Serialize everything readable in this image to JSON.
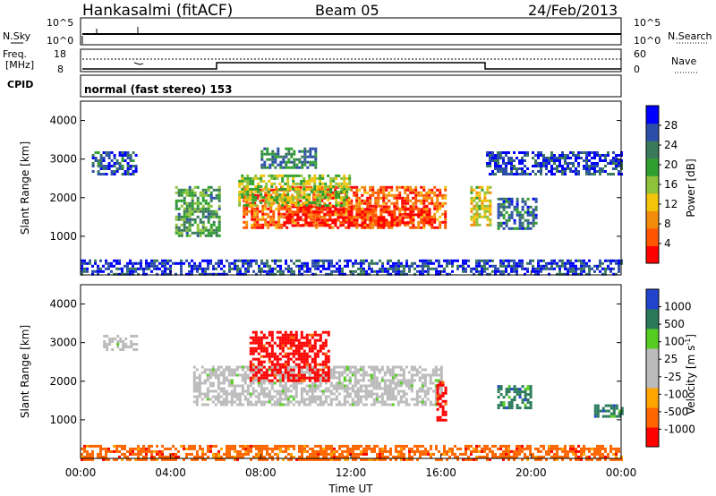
{
  "header": {
    "station": "Hankasalmi (fitACF)",
    "beam": "Beam 05",
    "date": "24/Feb/2013"
  },
  "noise_panel": {
    "left_label": "N.Sky",
    "right_label": "N.Search",
    "ticks_left": [
      "10^5",
      "10^0"
    ],
    "ticks_right": [
      "10^5",
      "10^0"
    ]
  },
  "freq_panel": {
    "left_label_1": "Freq.",
    "left_label_2": "[MHz]",
    "ticks_left": [
      "18",
      "8"
    ],
    "right_label": "Nave",
    "ticks_right": [
      "60",
      "0"
    ]
  },
  "cpid": {
    "label": "CPID",
    "text": "normal (fast stereo) 153"
  },
  "chart_data": [
    {
      "type": "heatmap",
      "name": "power",
      "ylabel": "Slant Range [km]",
      "ylim": [
        0,
        4500
      ],
      "yticks": [
        "4000",
        "3000",
        "2000",
        "1000"
      ],
      "xlim_hours": [
        0,
        24
      ],
      "xticks": [
        "00:00",
        "04:00",
        "08:00",
        "12:00",
        "16:00",
        "20:00",
        "00:00"
      ],
      "colorbar_label": "Power [dB]",
      "colorbar_ticks": [
        "28",
        "24",
        "20",
        "16",
        "12",
        "8",
        "4"
      ],
      "colorscale": [
        "#0000ff",
        "#2b4ea8",
        "#3a7a5a",
        "#2fa02f",
        "#8ec23a",
        "#f2c40a",
        "#f28c0a",
        "#ff5500",
        "#ff0000"
      ],
      "regions": [
        {
          "t": [
            7.2,
            16.2
          ],
          "r": [
            1250,
            2300
          ],
          "level": 0.85
        },
        {
          "t": [
            9.0,
            15.5
          ],
          "r": [
            1300,
            1800
          ],
          "level": 1.0
        },
        {
          "t": [
            7.0,
            12.0
          ],
          "r": [
            1800,
            2600
          ],
          "level": 0.5
        },
        {
          "t": [
            4.2,
            6.2
          ],
          "r": [
            1000,
            2300
          ],
          "level": 0.35
        },
        {
          "t": [
            17.3,
            18.2
          ],
          "r": [
            1300,
            2300
          ],
          "level": 0.6
        },
        {
          "t": [
            18.5,
            20.2
          ],
          "r": [
            1200,
            2000
          ],
          "level": 0.2
        },
        {
          "t": [
            0.5,
            2.5
          ],
          "r": [
            2600,
            3200
          ],
          "level": 0.15
        },
        {
          "t": [
            8.0,
            10.5
          ],
          "r": [
            2800,
            3300
          ],
          "level": 0.25
        },
        {
          "t": [
            18.0,
            24.0
          ],
          "r": [
            2600,
            3200
          ],
          "level": 0.1
        },
        {
          "t": [
            0,
            24
          ],
          "r": [
            0,
            400
          ],
          "level": 0.1
        }
      ]
    },
    {
      "type": "heatmap",
      "name": "velocity",
      "ylabel": "Slant Range [km]",
      "ylim": [
        0,
        4500
      ],
      "yticks": [
        "4000",
        "3000",
        "2000",
        "1000"
      ],
      "xlim_hours": [
        0,
        24
      ],
      "xticks": [
        "00:00",
        "04:00",
        "08:00",
        "12:00",
        "16:00",
        "20:00",
        "00:00"
      ],
      "xlabel": "Time UT",
      "colorbar_label": "Velocity [m s",
      "colorbar_label_sup": "-1",
      "colorbar_label_end": "]",
      "colorbar_ticks": [
        "1000",
        "500",
        "100",
        "25",
        "-25",
        "-100",
        "-500",
        "-1000"
      ],
      "colorscale": [
        "#2244cc",
        "#2a7a5a",
        "#55cc22",
        "#bbbbbb",
        "#bbbbbb",
        "#ffa500",
        "#ff6600",
        "#ff0000"
      ],
      "regions": [
        {
          "t": [
            5.0,
            16.0
          ],
          "r": [
            1400,
            2400
          ],
          "value": 0
        },
        {
          "t": [
            7.5,
            11.0
          ],
          "r": [
            2000,
            3300
          ],
          "value": -500
        },
        {
          "t": [
            15.8,
            16.2
          ],
          "r": [
            1000,
            2000
          ],
          "value": -500
        },
        {
          "t": [
            18.5,
            20.0
          ],
          "r": [
            1300,
            1900
          ],
          "value": 300
        },
        {
          "t": [
            22.8,
            24.0
          ],
          "r": [
            1100,
            1400
          ],
          "value": 100
        },
        {
          "t": [
            0,
            24
          ],
          "r": [
            0,
            350
          ],
          "value": -150
        },
        {
          "t": [
            1.0,
            2.5
          ],
          "r": [
            2800,
            3200
          ],
          "value": 0
        }
      ]
    }
  ]
}
